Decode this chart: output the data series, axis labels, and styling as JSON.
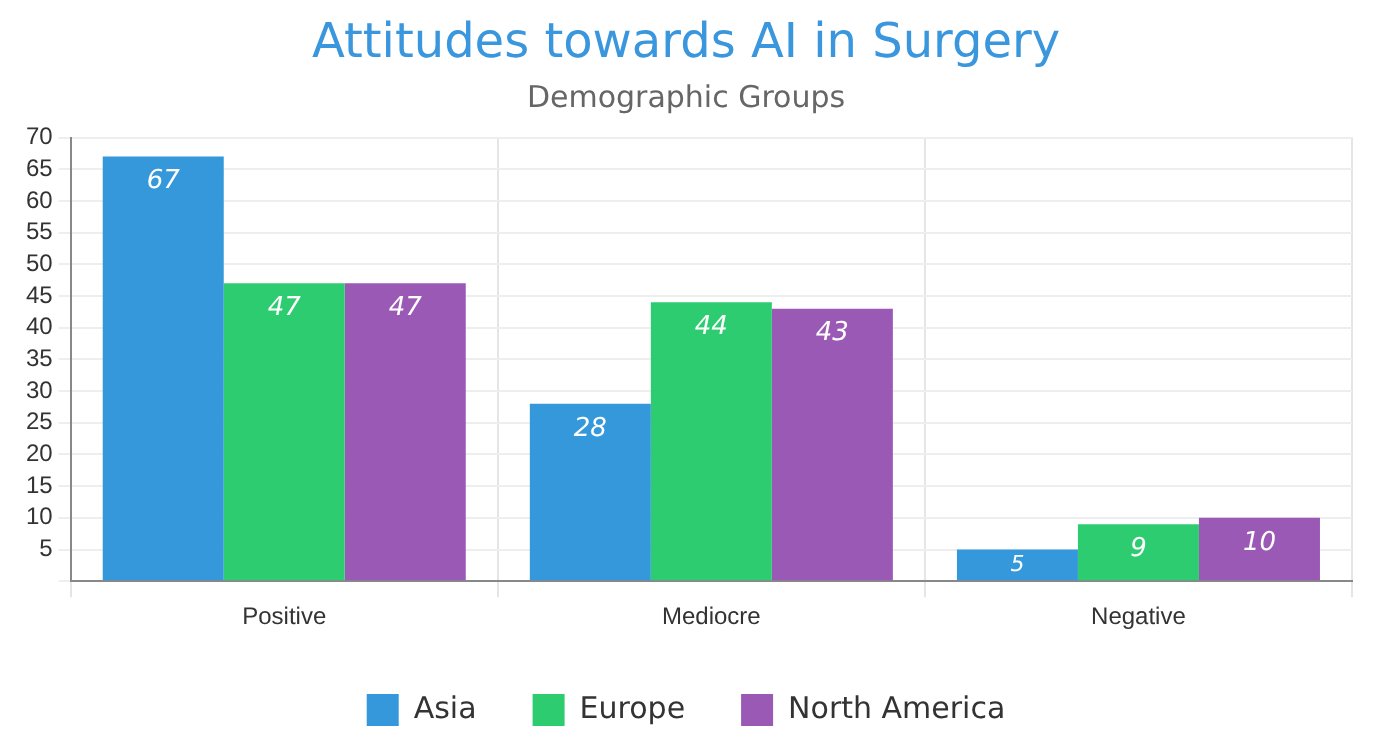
{
  "chart_data": {
    "type": "bar",
    "title": "Attitudes towards AI in Surgery",
    "subtitle": "Demographic Groups",
    "categories": [
      "Positive",
      "Mediocre",
      "Negative"
    ],
    "series": [
      {
        "name": "Asia",
        "color": "#3498db",
        "values": [
          67,
          28,
          5
        ]
      },
      {
        "name": "Europe",
        "color": "#2ecc71",
        "values": [
          47,
          44,
          9
        ]
      },
      {
        "name": "North America",
        "color": "#9b59b6",
        "values": [
          47,
          43,
          10
        ]
      }
    ],
    "ylim": [
      0,
      70
    ],
    "yticks": [
      {
        "value": 0,
        "label": null
      },
      5,
      10,
      15,
      20,
      25,
      30,
      35,
      40,
      45,
      50,
      55,
      60,
      65,
      70
    ],
    "grid": true,
    "legend": "bottom",
    "data_labels": true
  }
}
